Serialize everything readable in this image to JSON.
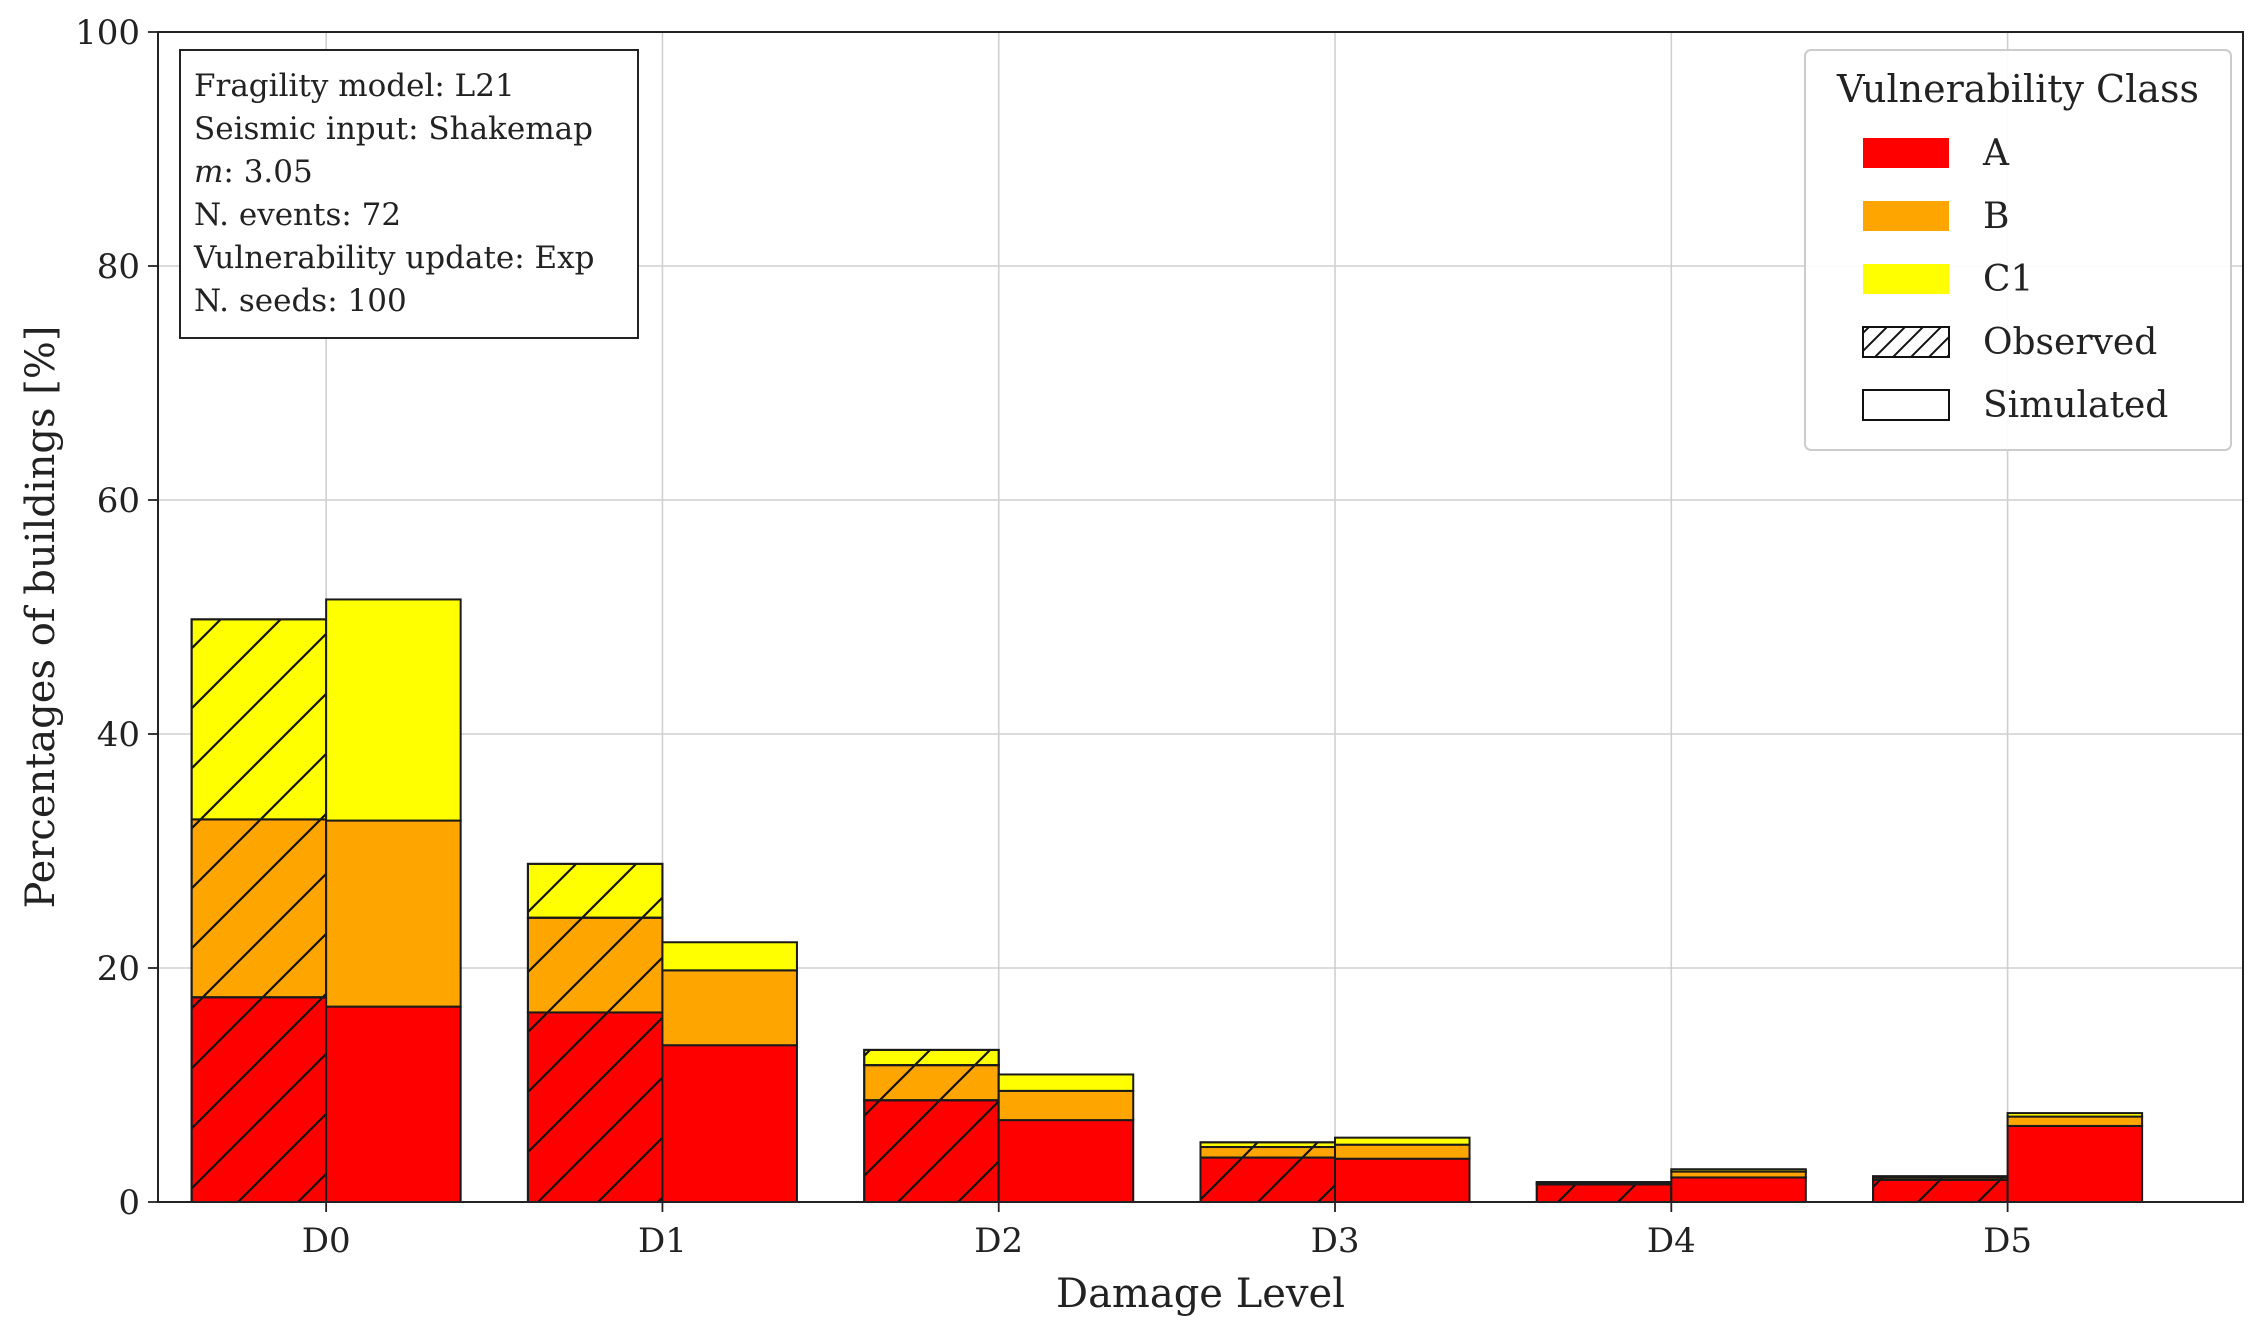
{
  "chart_data": {
    "type": "bar",
    "stacked": true,
    "grouped": true,
    "xlabel": "Damage Level",
    "ylabel": "Percentages of buildings [%]",
    "ylim": [
      0,
      100
    ],
    "yticks": [
      0,
      20,
      40,
      60,
      80,
      100
    ],
    "categories": [
      "D0",
      "D1",
      "D2",
      "D3",
      "D4",
      "D5"
    ],
    "grid": true,
    "groups": [
      {
        "name": "Observed",
        "hatched": true,
        "series": [
          {
            "name": "A",
            "values": [
              17.5,
              16.2,
              8.7,
              3.8,
              1.5,
              1.9
            ]
          },
          {
            "name": "B",
            "values": [
              15.2,
              8.1,
              3.0,
              0.9,
              0.1,
              0.2
            ]
          },
          {
            "name": "C1",
            "values": [
              17.1,
              4.6,
              1.3,
              0.4,
              0.1,
              0.1
            ]
          }
        ]
      },
      {
        "name": "Simulated",
        "hatched": false,
        "series": [
          {
            "name": "A",
            "values": [
              16.7,
              13.4,
              7.0,
              3.7,
              2.1,
              6.5
            ]
          },
          {
            "name": "B",
            "values": [
              15.9,
              6.4,
              2.5,
              1.2,
              0.5,
              0.8
            ]
          },
          {
            "name": "C1",
            "values": [
              18.9,
              2.4,
              1.4,
              0.6,
              0.2,
              0.3
            ]
          }
        ]
      }
    ],
    "colors": {
      "A": "#ff0000",
      "B": "#ffa500",
      "C1": "#ffff00"
    },
    "legend": {
      "title": "Vulnerability Class",
      "position": "top-right",
      "entries": [
        {
          "label": "A",
          "kind": "A"
        },
        {
          "label": "B",
          "kind": "B"
        },
        {
          "label": "C1",
          "kind": "C1"
        },
        {
          "label": "Observed",
          "kind": "observed"
        },
        {
          "label": "Simulated",
          "kind": "simulated"
        }
      ]
    },
    "annotation": {
      "position": "top-left",
      "lines": [
        {
          "prefix": "Fragility model: L21",
          "italic": "",
          "suffix": ""
        },
        {
          "prefix": "Seismic input: Shakemap",
          "italic": "",
          "suffix": ""
        },
        {
          "prefix": "",
          "italic": "m",
          "suffix": ": 3.05"
        },
        {
          "prefix": "N. events: 72",
          "italic": "",
          "suffix": ""
        },
        {
          "prefix": "Vulnerability update: Exp",
          "italic": "",
          "suffix": ""
        },
        {
          "prefix": "N. seeds: 100",
          "italic": "",
          "suffix": ""
        }
      ]
    }
  }
}
